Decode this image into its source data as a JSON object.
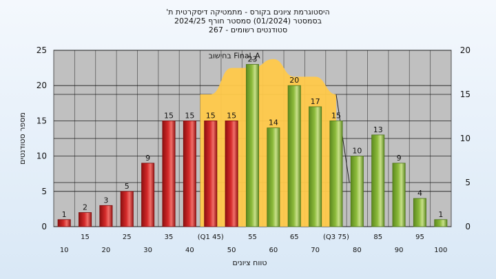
{
  "title_lines": [
    "היסטוגרמת ציונים בקורס - מתמטיקה דיסקרטית ת'",
    "בסמסטר  (01/2024)  סמסטר חורף 2024/25",
    "סטודנטים רשומים - 267"
  ],
  "chart_data": {
    "type": "bar",
    "categories": [
      "10",
      "15",
      "20",
      "25",
      "30",
      "35",
      "40",
      "45",
      "50",
      "55",
      "60",
      "65",
      "70",
      "75",
      "80",
      "85",
      "90",
      "95",
      "100"
    ],
    "x_tick_labels": [
      "10",
      "15",
      "20",
      "25",
      "30",
      "35",
      "40",
      "(Q1 45)",
      "50",
      "55",
      "60",
      "65",
      "70",
      "(Q3 75)",
      "80",
      "85",
      "90",
      "95",
      "100"
    ],
    "values": [
      1,
      2,
      3,
      5,
      9,
      15,
      15,
      15,
      15,
      23,
      14,
      20,
      17,
      15,
      10,
      13,
      9,
      4,
      1
    ],
    "bar_groups": [
      "fail",
      "fail",
      "fail",
      "fail",
      "fail",
      "fail",
      "fail",
      "fail",
      "fail",
      "pass",
      "pass",
      "pass",
      "pass",
      "pass",
      "pass",
      "pass",
      "pass",
      "pass",
      "pass"
    ],
    "xlabel": "טווח ציונים",
    "ylabel": "מספר סטודנטים",
    "ylim": [
      0,
      25
    ],
    "y_ticks": [
      0,
      5,
      10,
      15,
      20,
      25
    ],
    "y2lim": [
      0,
      20
    ],
    "y2_ticks": [
      0,
      5,
      10,
      15,
      20
    ],
    "overlay_label": "בחישוב Final_A",
    "overlay_categories": [
      "45",
      "50",
      "55",
      "60",
      "65",
      "70",
      "75"
    ],
    "overlay_values": [
      15,
      18,
      18,
      19,
      17,
      17,
      15
    ],
    "overlay_drop_categories": [
      "75",
      "80"
    ],
    "overlay_drop_values": [
      15,
      5
    ],
    "grid": true,
    "colors": {
      "fail": "#d42a2a",
      "pass": "#8dbb3c",
      "overlay": "#ffc94a",
      "plot_bg": "#c0c0c0"
    }
  }
}
